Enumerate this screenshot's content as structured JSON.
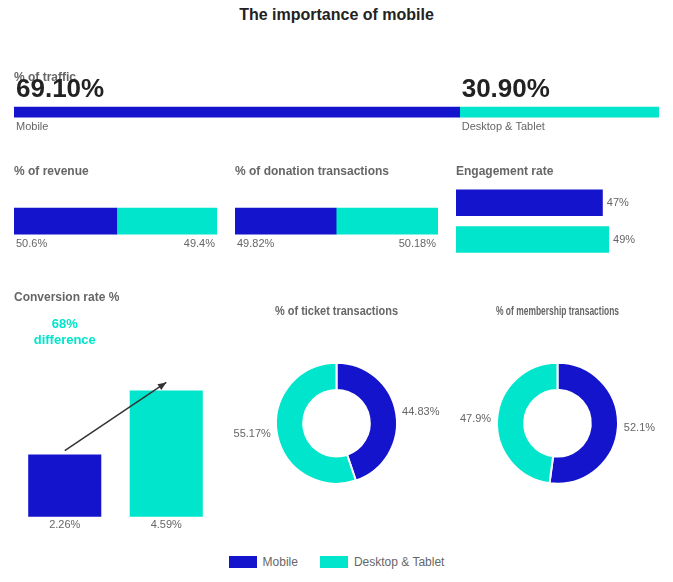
{
  "title": "The importance of mobile",
  "legend": "bottom",
  "chart_data": [
    {
      "type": "bar",
      "title": "% of traffic",
      "orientation": "horizontal",
      "stacked": true,
      "data_labels": true,
      "tick_labels": false,
      "categories": [
        null
      ],
      "xlim": [
        0,
        100
      ],
      "series": [
        {
          "name": "Mobile",
          "color": "#1414cc",
          "values": [
            69.1
          ],
          "value_labels": [
            "69.10%"
          ]
        },
        {
          "name": "Desktop & Tablet",
          "color": "#00e5cc",
          "values": [
            30.9
          ],
          "value_labels": [
            "30.90%"
          ]
        }
      ]
    },
    {
      "type": "bar",
      "title": "% of revenue",
      "orientation": "horizontal",
      "stacked": true,
      "data_labels": true,
      "tick_labels": false,
      "categories": [
        null
      ],
      "xlim": [
        0,
        100
      ],
      "series": [
        {
          "name": "Mobile",
          "color": "#1414cc",
          "values": [
            50.6
          ],
          "value_labels": [
            "50.6%"
          ]
        },
        {
          "name": "Desktop & Tablet",
          "color": "#00e5cc",
          "values": [
            49.4
          ],
          "value_labels": [
            "49.4%"
          ]
        }
      ]
    },
    {
      "type": "bar",
      "title": "% of donation transactions",
      "orientation": "horizontal",
      "stacked": true,
      "data_labels": true,
      "tick_labels": false,
      "categories": [
        null
      ],
      "xlim": [
        0,
        100
      ],
      "series": [
        {
          "name": "Mobile",
          "color": "#1414cc",
          "values": [
            49.82
          ],
          "value_labels": [
            "49.82%"
          ]
        },
        {
          "name": "Desktop & Tablet",
          "color": "#00e5cc",
          "values": [
            50.18
          ],
          "value_labels": [
            "50.18%"
          ]
        }
      ]
    },
    {
      "type": "bar",
      "title": "Engagement rate",
      "orientation": "horizontal",
      "data_labels": true,
      "tick_labels": false,
      "categories": [
        null,
        null
      ],
      "values": [
        47,
        49
      ],
      "value_labels": [
        "47%",
        "49%"
      ],
      "colors": [
        "#1414cc",
        "#00e5cc"
      ],
      "xlim": [
        0,
        65
      ]
    },
    {
      "type": "bar",
      "title": "Conversion rate %",
      "data_labels": true,
      "tick_labels": false,
      "categories": [
        null,
        null
      ],
      "values": [
        2.26,
        4.59
      ],
      "value_labels": [
        "2.26%",
        "4.59%"
      ],
      "colors": [
        "#1414cc",
        "#00e5cc"
      ],
      "ylim": [
        -0.7,
        7.5
      ],
      "annotations": [
        "68%",
        "difference"
      ]
    },
    {
      "type": "doughnut",
      "title": "% of ticket transactions",
      "data_labels": true,
      "categories": [
        "Mobile",
        "Desktop & Tablet"
      ],
      "values": [
        44.83,
        55.17
      ],
      "value_labels": [
        "44.83%",
        "55.17%"
      ],
      "colors": [
        "#1414cc",
        "#00e5cc"
      ]
    },
    {
      "type": "doughnut",
      "title": "% of membership transactions",
      "data_labels": true,
      "categories": [
        "Mobile",
        "Desktop & Tablet"
      ],
      "values": [
        52.1,
        47.9
      ],
      "value_labels": [
        "52.1%",
        "47.9%"
      ],
      "colors": [
        "#1414cc",
        "#00e5cc"
      ]
    }
  ]
}
